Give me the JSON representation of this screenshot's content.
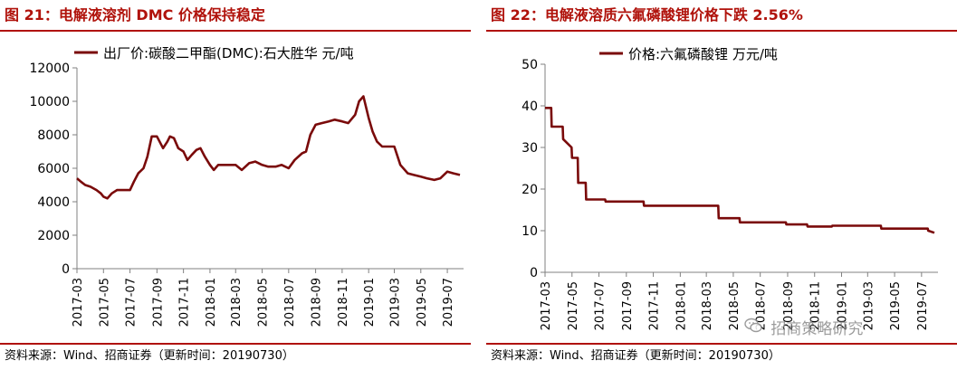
{
  "colors": {
    "accent": "#b0120b",
    "series": "#7a0a0a",
    "text": "#000000"
  },
  "left": {
    "title": "图 21：电解液溶剂 DMC 价格保持稳定",
    "source": "资料来源：Wind、招商证券（更新时间：20190730）"
  },
  "right": {
    "title": "图 22：电解液溶质六氟磷酸锂价格下跌 2.56%",
    "source": "资料来源：Wind、招商证券（更新时间：20190730）"
  },
  "watermark": {
    "text": "招商策略研究",
    "icon": "wechat-icon"
  },
  "chart_data": [
    {
      "type": "line",
      "series": [
        {
          "name": "出厂价:碳酸二甲酯(DMC):石大胜华 元/吨",
          "x": [
            "2017-03-01",
            "2017-03-10",
            "2017-03-20",
            "2017-04-01",
            "2017-04-15",
            "2017-04-25",
            "2017-05-01",
            "2017-05-10",
            "2017-05-20",
            "2017-06-01",
            "2017-06-10",
            "2017-06-20",
            "2017-07-01",
            "2017-07-10",
            "2017-07-20",
            "2017-08-01",
            "2017-08-10",
            "2017-08-20",
            "2017-09-01",
            "2017-09-15",
            "2017-09-25",
            "2017-10-01",
            "2017-10-10",
            "2017-10-20",
            "2017-11-01",
            "2017-11-10",
            "2017-11-20",
            "2017-12-01",
            "2017-12-10",
            "2017-12-20",
            "2018-01-01",
            "2018-01-10",
            "2018-01-20",
            "2018-02-01",
            "2018-02-20",
            "2018-03-01",
            "2018-03-15",
            "2018-04-01",
            "2018-04-15",
            "2018-05-01",
            "2018-05-15",
            "2018-06-01",
            "2018-06-15",
            "2018-07-01",
            "2018-07-15",
            "2018-08-01",
            "2018-08-10",
            "2018-08-20",
            "2018-09-01",
            "2018-09-15",
            "2018-10-01",
            "2018-10-15",
            "2018-11-01",
            "2018-11-15",
            "2018-12-01",
            "2018-12-10",
            "2018-12-20",
            "2019-01-01",
            "2019-01-10",
            "2019-01-20",
            "2019-02-01",
            "2019-02-15",
            "2019-03-01",
            "2019-03-15",
            "2019-04-01",
            "2019-04-15",
            "2019-05-01",
            "2019-05-15",
            "2019-06-01",
            "2019-06-15",
            "2019-07-01",
            "2019-07-15",
            "2019-07-30"
          ],
          "values": [
            5400,
            5200,
            5000,
            4900,
            4700,
            4500,
            4300,
            4200,
            4500,
            4700,
            4700,
            4700,
            4700,
            5200,
            5700,
            6000,
            6700,
            7900,
            7900,
            7200,
            7600,
            7900,
            7800,
            7200,
            7000,
            6500,
            6800,
            7100,
            7200,
            6700,
            6200,
            5900,
            6200,
            6200,
            6200,
            6200,
            5900,
            6300,
            6400,
            6200,
            6100,
            6100,
            6200,
            6000,
            6500,
            6900,
            7000,
            8000,
            8600,
            8700,
            8800,
            8900,
            8800,
            8700,
            9200,
            10000,
            10300,
            9000,
            8200,
            7600,
            7300,
            7300,
            7300,
            6200,
            5700,
            5600,
            5500,
            5400,
            5300,
            5400,
            5800,
            5700,
            5600
          ]
        }
      ],
      "xticks": [
        "2017-03",
        "2017-05",
        "2017-07",
        "2017-09",
        "2017-11",
        "2018-01",
        "2018-03",
        "2018-05",
        "2018-07",
        "2018-09",
        "2018-11",
        "2019-01",
        "2019-03",
        "2019-05",
        "2019-07"
      ],
      "yticks": [
        "0",
        "2000",
        "4000",
        "6000",
        "8000",
        "10000",
        "12000"
      ],
      "ylim": [
        0,
        12000
      ],
      "grid": false,
      "legend": "top-left"
    },
    {
      "type": "line",
      "series": [
        {
          "name": "价格:六氟磷酸锂 万元/吨",
          "x": [
            "2017-03-01",
            "2017-03-15",
            "2017-03-16",
            "2017-04-10",
            "2017-04-11",
            "2017-04-30",
            "2017-05-01",
            "2017-05-14",
            "2017-05-15",
            "2017-06-01",
            "2017-06-02",
            "2017-07-15",
            "2017-07-16",
            "2017-10-10",
            "2017-10-11",
            "2018-01-15",
            "2018-01-16",
            "2018-03-28",
            "2018-03-29",
            "2018-05-15",
            "2018-05-16",
            "2018-08-28",
            "2018-08-29",
            "2018-10-15",
            "2018-10-16",
            "2018-12-10",
            "2018-12-11",
            "2019-03-31",
            "2019-04-01",
            "2019-07-15",
            "2019-07-16",
            "2019-07-30"
          ],
          "values": [
            39.5,
            39.5,
            35,
            35,
            32,
            30,
            27.5,
            27.5,
            21.5,
            21.5,
            17.5,
            17.5,
            17,
            17,
            16,
            16,
            16,
            16,
            13,
            13,
            12,
            12,
            11.5,
            11.5,
            11,
            11,
            11.2,
            11.2,
            10.5,
            10.5,
            10,
            9.5
          ]
        }
      ],
      "xticks": [
        "2017-03",
        "2017-05",
        "2017-07",
        "2017-09",
        "2017-11",
        "2018-01",
        "2018-03",
        "2018-05",
        "2018-07",
        "2018-09",
        "2018-11",
        "2019-01",
        "2019-03",
        "2019-05",
        "2019-07"
      ],
      "yticks": [
        "0",
        "10",
        "20",
        "30",
        "40",
        "50"
      ],
      "ylim": [
        0,
        50
      ],
      "grid": false,
      "legend": "top-left"
    }
  ]
}
